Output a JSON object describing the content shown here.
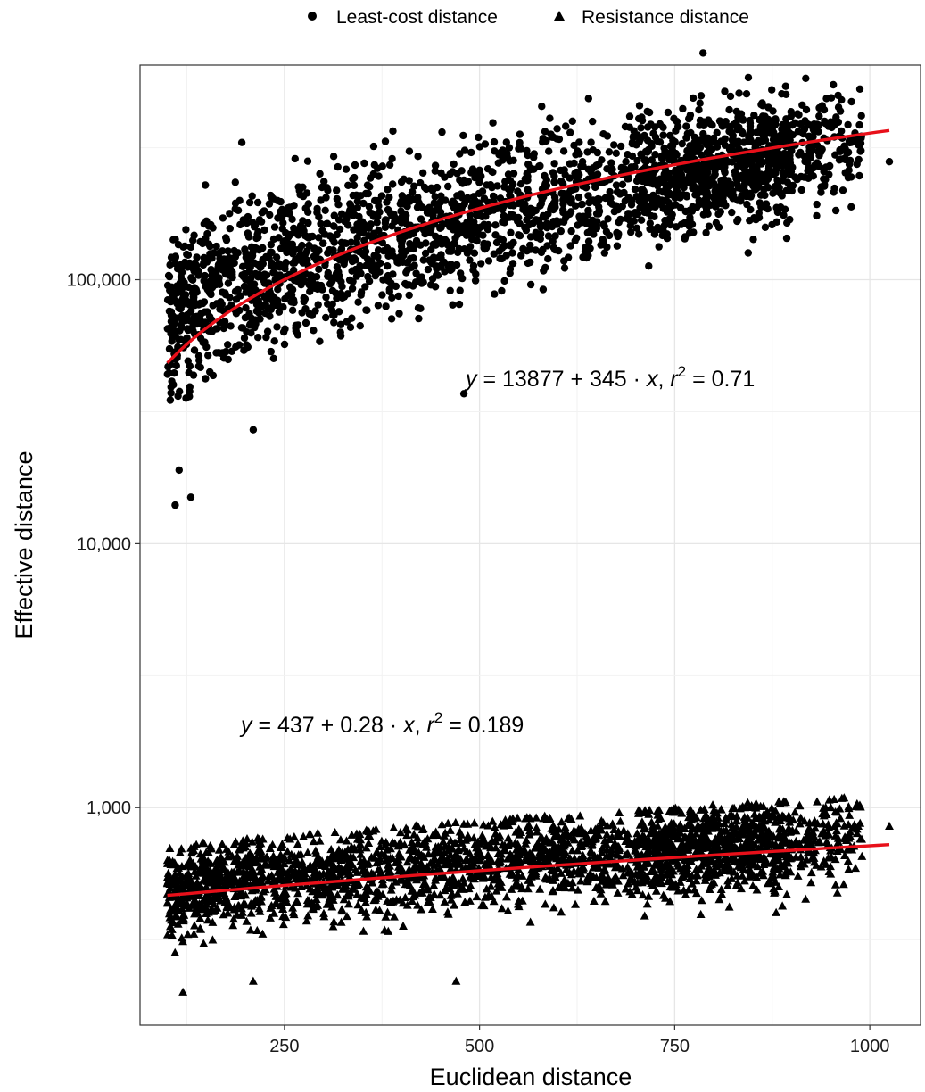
{
  "chart_data": {
    "type": "scatter",
    "title": "",
    "xlabel": "Euclidean distance",
    "ylabel": "Effective distance",
    "x_ticks": [
      250,
      500,
      750,
      1000
    ],
    "x_tick_labels": [
      "250",
      "500",
      "750",
      "1000"
    ],
    "y_scale": "log10",
    "y_ticks": [
      1000,
      10000,
      100000
    ],
    "y_tick_labels": [
      "1,000",
      "10,000",
      "100,000"
    ],
    "xlim": [
      65,
      1065
    ],
    "ylim": [
      150,
      650000
    ],
    "grid": true,
    "legend_position": "top",
    "legend": [
      {
        "label": "Least-cost distance",
        "shape": "circle"
      },
      {
        "label": "Resistance distance",
        "shape": "triangle"
      }
    ],
    "series": [
      {
        "name": "Least-cost distance",
        "marker": "circle",
        "color": "#000000",
        "x_range": [
          100,
          1025
        ],
        "regression": {
          "intercept": 13877,
          "slope": 345,
          "r2": 0.71,
          "color": "#e8101a"
        },
        "label_parts": [
          "y",
          " = 13877 + 345 · ",
          "x",
          ",  ",
          "r",
          "2",
          " = 0.71"
        ],
        "points_sample": [
          [
            110,
            14000
          ],
          [
            130,
            15000
          ],
          [
            115,
            19000
          ],
          [
            1025,
            280000
          ],
          [
            820,
            440000
          ],
          [
            960,
            450000
          ],
          [
            480,
            37000
          ],
          [
            210,
            27000
          ]
        ]
      },
      {
        "name": "Resistance distance",
        "marker": "triangle",
        "color": "#000000",
        "x_range": [
          100,
          1025
        ],
        "regression": {
          "intercept": 437,
          "slope": 0.28,
          "r2": 0.189,
          "color": "#e8101a"
        },
        "label_parts": [
          "y",
          " = 437 + 0.28 · ",
          "x",
          ",  ",
          "r",
          "2",
          " = 0.189"
        ],
        "points_sample": [
          [
            120,
            200
          ],
          [
            210,
            220
          ],
          [
            470,
            220
          ],
          [
            950,
            1000
          ],
          [
            860,
            1010
          ],
          [
            1025,
            850
          ],
          [
            820,
            420
          ],
          [
            880,
            400
          ]
        ]
      }
    ]
  }
}
